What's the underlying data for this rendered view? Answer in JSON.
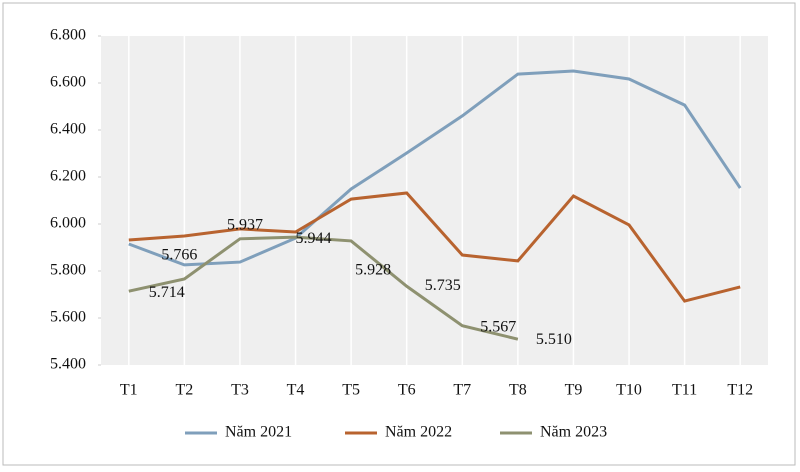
{
  "chart_data": {
    "type": "line",
    "categories": [
      "T1",
      "T2",
      "T3",
      "T4",
      "T5",
      "T6",
      "T7",
      "T8",
      "T9",
      "T10",
      "T11",
      "T12"
    ],
    "series": [
      {
        "name": "Năm 2021",
        "color": "#7f9fbb",
        "values": [
          5915,
          5826,
          5838,
          5940,
          6149,
          6302,
          6460,
          6638,
          6651,
          6617,
          6506,
          6153
        ]
      },
      {
        "name": "Năm 2022",
        "color": "#b8632f",
        "values": [
          5932,
          5949,
          5979,
          5966,
          6106,
          6132,
          5868,
          5843,
          6119,
          5996,
          5672,
          5732
        ]
      },
      {
        "name": "Năm 2023",
        "color": "#8e9170",
        "values": [
          5714,
          5766,
          5937,
          5944,
          5928,
          5735,
          5567,
          5510,
          null,
          null,
          null,
          null
        ],
        "value_labels": [
          "5.714",
          "5.766",
          "5.937",
          "5.944",
          "5.928",
          "5.735",
          "5.567",
          "5.510",
          null,
          null,
          null,
          null
        ]
      }
    ],
    "ylim": [
      5400,
      6800
    ],
    "yticks": [
      {
        "value": 5400,
        "label": "5.400"
      },
      {
        "value": 5600,
        "label": "5.600"
      },
      {
        "value": 5800,
        "label": "5.800"
      },
      {
        "value": 6000,
        "label": "6.000"
      },
      {
        "value": 6200,
        "label": "6.200"
      },
      {
        "value": 6400,
        "label": "6.400"
      },
      {
        "value": 6600,
        "label": "6.600"
      },
      {
        "value": 6800,
        "label": "6.800"
      }
    ],
    "grid": true
  }
}
